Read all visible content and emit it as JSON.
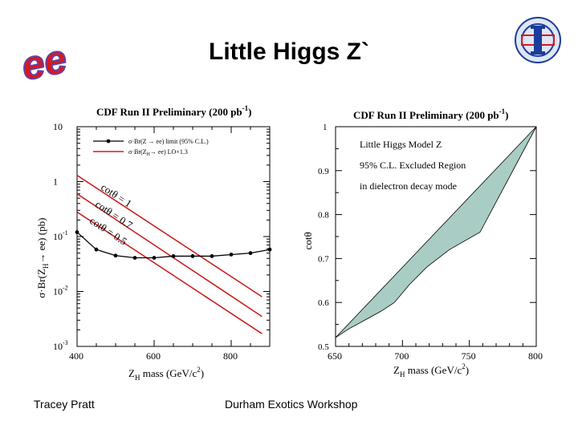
{
  "slide": {
    "title": "Little Higgs Z`",
    "logo_left": "ee",
    "footer_left": "Tracey Pratt",
    "footer_center": "Durham Exotics Workshop"
  },
  "colors": {
    "excluded_fill": "#a9cdc4",
    "theory_line": "#cc1f1f",
    "limit_line": "#000000",
    "logo_red": "#d8181c",
    "logo_purple": "#6b3ea0",
    "cdf_blue": "#1b3d9a"
  },
  "chart_data": [
    {
      "type": "line",
      "title": "CDF Run II Preliminary (200 pb",
      "title_superscript": "-1",
      "title_close": ")",
      "xlabel": "Z",
      "xlabel_sub": "H",
      "xlabel_unit": " mass (GeV/c",
      "xlabel_sup": "2",
      "xlabel_close": ")",
      "ylabel": "σ·Br(Z",
      "ylabel_sub": "H",
      "ylabel_tail": "→ ee) (pb)",
      "log_y": true,
      "xlim": [
        400,
        900
      ],
      "ylim": [
        0.001,
        10
      ],
      "xticks": [
        "400",
        "600",
        "800"
      ],
      "yticks": [
        {
          "base": "10",
          "exp": "",
          "v": 10
        },
        {
          "base": "1",
          "exp": "",
          "v": 1
        },
        {
          "base": "10",
          "exp": "-1",
          "v": 0.1
        },
        {
          "base": "10",
          "exp": "-2",
          "v": 0.01
        },
        {
          "base": "10",
          "exp": "-3",
          "v": 0.001
        }
      ],
      "legend": {
        "placement": "top-right",
        "entries": [
          {
            "text": "σ·Br(Z → ee) limit (95% C.L.)",
            "style": "line-marker"
          },
          {
            "text": "σ·Br(Z",
            "sub": "H",
            "text2": "→ ee) LO×1.3",
            "style": "line"
          }
        ]
      },
      "series": [
        {
          "role": "limit",
          "x": [
            400,
            450,
            500,
            550,
            600,
            650,
            700,
            750,
            800,
            850,
            900
          ],
          "y": [
            0.12,
            0.058,
            0.045,
            0.041,
            0.041,
            0.044,
            0.044,
            0.044,
            0.047,
            0.05,
            0.058
          ]
        },
        {
          "role": "theory",
          "label": "cotθ = 1",
          "x": [
            400,
            880
          ],
          "y": [
            1.3,
            0.008
          ]
        },
        {
          "role": "theory",
          "label": "cotθ = 0.7",
          "x": [
            400,
            880
          ],
          "y": [
            0.6,
            0.0035
          ]
        },
        {
          "role": "theory",
          "label": "cotθ = 0.5",
          "x": [
            400,
            880
          ],
          "y": [
            0.28,
            0.0017
          ]
        }
      ]
    },
    {
      "type": "area",
      "title": "CDF Run II Preliminary (200 pb",
      "title_superscript": "-1",
      "title_close": ")",
      "xlabel": "Z",
      "xlabel_sub": "H",
      "xlabel_unit": " mass (GeV/c",
      "xlabel_sup": "2",
      "xlabel_close": ")",
      "ylabel": "cotθ",
      "xlim": [
        650,
        800
      ],
      "ylim": [
        0.5,
        1
      ],
      "xticks": [
        "650",
        "700",
        "750",
        "800"
      ],
      "yticks": [
        "1",
        "0.9",
        "0.8",
        "0.7",
        "0.6",
        "0.5"
      ],
      "annotations": [
        "Little Higgs Model Z",
        "95% C.L. Excluded Region",
        "in dielectron decay mode"
      ],
      "boundary": {
        "x": [
          650,
          660,
          672,
          684,
          694,
          705,
          718,
          735,
          758,
          800
        ],
        "y": [
          0.52,
          0.54,
          0.56,
          0.58,
          0.6,
          0.64,
          0.68,
          0.72,
          0.76,
          1.0
        ]
      }
    }
  ]
}
